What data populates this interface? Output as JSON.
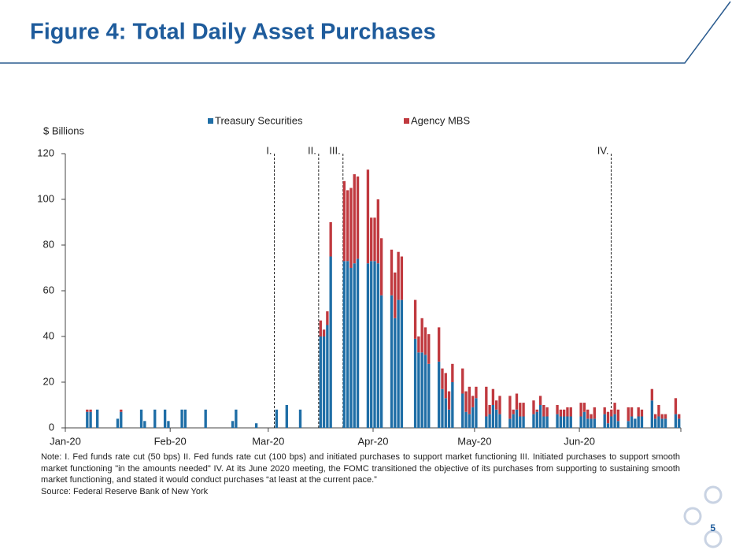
{
  "chart_data": {
    "type": "bar",
    "stacked": true,
    "title": "Figure 4: Total Daily Asset Purchases",
    "y_label": "$ Billions",
    "categories": [
      "Jan-20",
      null,
      null,
      null,
      null,
      null,
      null,
      null,
      null,
      null,
      null,
      null,
      null,
      null,
      null,
      null,
      null,
      null,
      null,
      null,
      null,
      null,
      null,
      null,
      null,
      null,
      null,
      null,
      null,
      null,
      null,
      "Feb-20",
      null,
      null,
      null,
      null,
      null,
      null,
      null,
      null,
      null,
      null,
      null,
      null,
      null,
      null,
      null,
      null,
      null,
      null,
      null,
      null,
      null,
      null,
      null,
      null,
      null,
      null,
      null,
      null,
      "Mar-20",
      null,
      null,
      null,
      null,
      null,
      null,
      null,
      null,
      null,
      null,
      null,
      null,
      null,
      null,
      null,
      null,
      null,
      null,
      null,
      null,
      null,
      null,
      null,
      null,
      null,
      null,
      null,
      null,
      null,
      null,
      "Apr-20",
      null,
      null,
      null,
      null,
      null,
      null,
      null,
      null,
      null,
      null,
      null,
      null,
      null,
      null,
      null,
      null,
      null,
      null,
      null,
      null,
      null,
      null,
      null,
      null,
      null,
      null,
      null,
      null,
      null,
      "May-20",
      null,
      null,
      null,
      null,
      null,
      null,
      null,
      null,
      null,
      null,
      null,
      null,
      null,
      null,
      null,
      null,
      null,
      null,
      null,
      null,
      null,
      null,
      null,
      null,
      null,
      null,
      null,
      null,
      null,
      null,
      "Jun-20",
      null,
      null,
      null,
      null,
      null,
      null,
      null,
      null,
      null,
      null,
      null,
      null,
      null,
      null,
      null,
      null,
      null,
      null,
      null,
      null,
      null,
      null,
      null,
      null,
      null,
      null,
      null,
      null,
      null
    ],
    "series": [
      {
        "name": "Treasury Securities",
        "color": "#1f6ea6",
        "values": [
          null,
          null,
          null,
          null,
          null,
          null,
          7,
          7,
          null,
          8,
          null,
          null,
          null,
          null,
          null,
          4,
          7,
          null,
          null,
          null,
          null,
          null,
          8,
          3,
          null,
          null,
          8,
          null,
          null,
          8,
          3,
          null,
          null,
          null,
          8,
          8,
          null,
          null,
          null,
          null,
          null,
          8,
          null,
          null,
          null,
          null,
          null,
          null,
          null,
          3,
          8,
          null,
          null,
          null,
          null,
          null,
          2,
          null,
          null,
          null,
          null,
          null,
          8,
          null,
          null,
          10,
          null,
          null,
          null,
          8,
          null,
          null,
          null,
          null,
          null,
          40,
          40,
          45,
          75,
          null,
          null,
          null,
          73,
          73,
          70,
          72,
          74,
          null,
          null,
          72,
          73,
          73,
          72,
          58,
          null,
          null,
          58,
          48,
          56,
          56,
          null,
          null,
          null,
          39,
          33,
          33,
          32,
          28,
          null,
          null,
          29,
          17,
          13,
          8,
          20,
          null,
          null,
          15,
          7,
          6,
          9,
          13,
          null,
          null,
          5,
          6,
          10,
          8,
          6,
          null,
          null,
          4,
          6,
          8,
          5,
          5,
          null,
          null,
          6,
          7,
          10,
          5,
          5,
          null,
          null,
          6,
          5,
          5,
          5,
          5,
          null,
          null,
          5,
          7,
          4,
          4,
          4,
          null,
          null,
          6,
          2,
          5,
          6,
          3,
          null,
          null,
          3,
          5,
          4,
          5,
          5,
          null,
          null,
          12,
          4,
          5,
          4,
          4,
          null,
          null,
          6,
          4
        ]
      },
      {
        "name": "Agency MBS",
        "color": "#c0393f",
        "values": [
          null,
          null,
          null,
          null,
          null,
          null,
          1,
          1,
          null,
          0,
          null,
          null,
          null,
          null,
          null,
          0,
          1,
          null,
          null,
          null,
          null,
          null,
          0,
          0,
          null,
          null,
          0,
          null,
          null,
          0,
          0,
          null,
          null,
          null,
          0,
          0,
          null,
          null,
          null,
          null,
          null,
          0,
          null,
          null,
          null,
          null,
          null,
          null,
          null,
          0,
          0,
          null,
          null,
          null,
          null,
          null,
          0,
          null,
          null,
          null,
          null,
          null,
          0,
          null,
          null,
          0,
          null,
          null,
          null,
          0,
          null,
          null,
          null,
          null,
          null,
          7,
          3,
          6,
          15,
          null,
          null,
          null,
          35,
          31,
          35,
          39,
          36,
          null,
          null,
          41,
          19,
          19,
          28,
          25,
          null,
          null,
          20,
          20,
          21,
          19,
          null,
          null,
          null,
          17,
          7,
          15,
          12,
          13,
          null,
          null,
          15,
          9,
          11,
          8,
          8,
          null,
          null,
          11,
          9,
          12,
          5,
          5,
          null,
          null,
          13,
          4,
          7,
          4,
          8,
          null,
          null,
          10,
          2,
          7,
          6,
          6,
          null,
          null,
          6,
          1,
          4,
          5,
          4,
          null,
          null,
          4,
          3,
          3,
          4,
          4,
          null,
          null,
          6,
          4,
          4,
          2,
          5,
          null,
          null,
          3,
          5,
          3,
          5,
          5,
          null,
          null,
          6,
          4,
          0,
          4,
          3,
          null,
          null,
          5,
          2,
          5,
          2,
          2,
          null,
          null,
          7,
          2
        ]
      }
    ],
    "ylim": [
      0,
      120
    ],
    "yticks": [
      0,
      20,
      40,
      60,
      80,
      100,
      120
    ],
    "legend": "top",
    "annotations": [
      "I.",
      "II.",
      "III.",
      "IV."
    ],
    "note": "Note: I. Fed funds rate cut (50 bps) II. Fed funds rate cut (100 bps) and initiated purchases to support market functioning III. Initiated purchases to support smooth market functioning \"in the amounts needed\" IV. At its June 2020 meeting, the FOMC transitioned the objective of its purchases from supporting to sustaining smooth market functioning, and stated it would conduct purchases “at least at the current pace.”",
    "source": "Source: Federal Reserve Bank of New York"
  },
  "page_number": "5"
}
